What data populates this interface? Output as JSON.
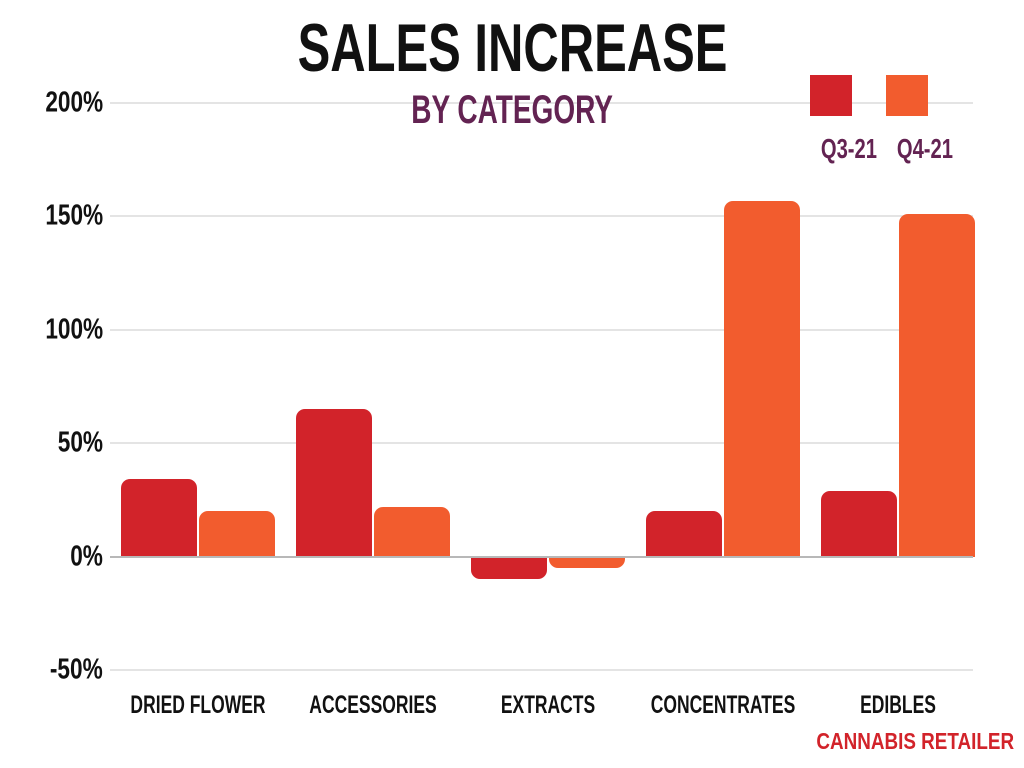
{
  "title": "SALES INCREASE",
  "subtitle": "BY CATEGORY",
  "footer": "CANNABIS RETAILER",
  "colors": {
    "title": "#111111",
    "subtitle": "#632352",
    "legend_label": "#632352",
    "footer": "#d2232a",
    "q3": "#d2232a",
    "q4": "#f25c2e",
    "grid": "#e4e4e4",
    "zero_line": "#b8b8b8"
  },
  "legend": [
    {
      "label": "Q3-21",
      "color": "#d2232a"
    },
    {
      "label": "Q4-21",
      "color": "#f25c2e"
    }
  ],
  "chart_data": {
    "type": "bar",
    "title": "SALES INCREASE",
    "subtitle": "BY CATEGORY",
    "categories": [
      "DRIED FLOWER",
      "ACCESSORIES",
      "EXTRACTS",
      "CONCENTRATES",
      "EDIBLES"
    ],
    "series": [
      {
        "name": "Q3-21",
        "color": "#d2232a",
        "values": [
          34,
          65,
          -10,
          20,
          29
        ]
      },
      {
        "name": "Q4-21",
        "color": "#f25c2e",
        "values": [
          20,
          22,
          -5,
          157,
          151
        ]
      }
    ],
    "xlabel": "",
    "ylabel": "",
    "ylim": [
      -50,
      200
    ],
    "yticks": [
      200,
      150,
      100,
      50,
      0,
      -50
    ],
    "ytick_format": "{v}%",
    "grid": true,
    "legend_position": "top-right"
  }
}
